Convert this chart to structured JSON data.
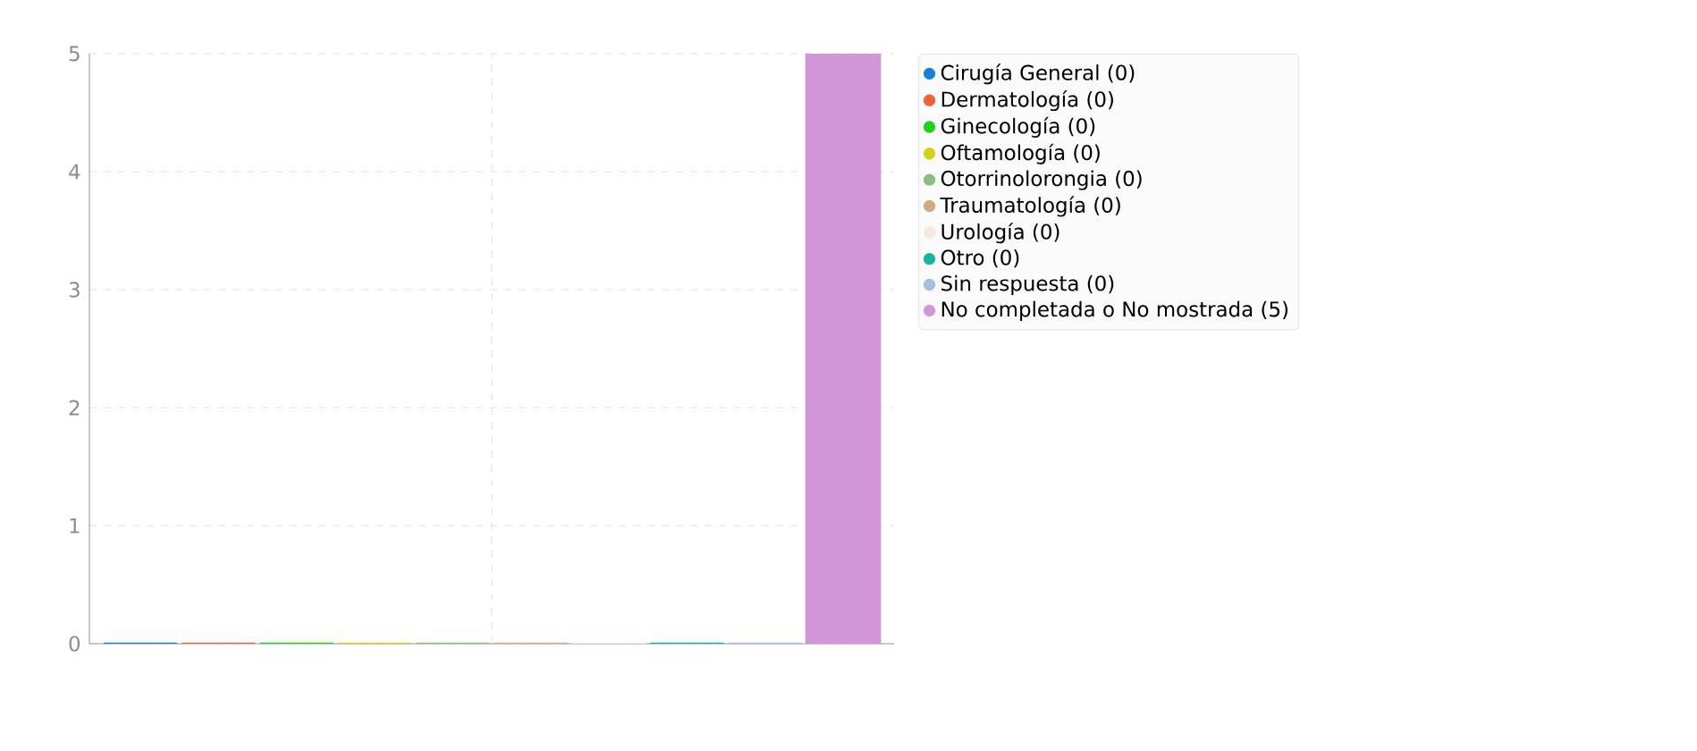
{
  "chart_data": {
    "type": "bar",
    "categories": [
      null
    ],
    "series": [
      {
        "name": "Cirugía General (0)",
        "color": "#1a7fd6",
        "values": [
          0
        ]
      },
      {
        "name": "Dermatología (0)",
        "color": "#f0643c",
        "values": [
          0
        ]
      },
      {
        "name": "Ginecología (0)",
        "color": "#1ed21e",
        "values": [
          0
        ]
      },
      {
        "name": "Oftamología (0)",
        "color": "#d2d214",
        "values": [
          0
        ]
      },
      {
        "name": "Otorrinolorongia (0)",
        "color": "#8cbe82",
        "values": [
          0
        ]
      },
      {
        "name": "Traumatología (0)",
        "color": "#d2aa82",
        "values": [
          0
        ]
      },
      {
        "name": "Urología (0)",
        "color": "#fae6dc",
        "values": [
          0
        ]
      },
      {
        "name": "Otro (0)",
        "color": "#14b4a0",
        "values": [
          0
        ]
      },
      {
        "name": "Sin respuesta (0)",
        "color": "#a5bedc",
        "values": [
          0
        ]
      },
      {
        "name": "No completada o No mostrada (5)",
        "color": "#d296d6",
        "values": [
          5
        ]
      }
    ],
    "ylim": [
      0,
      5
    ],
    "yticks": [
      0,
      1,
      2,
      3,
      4,
      5
    ],
    "grid": true,
    "legend": "top right"
  }
}
